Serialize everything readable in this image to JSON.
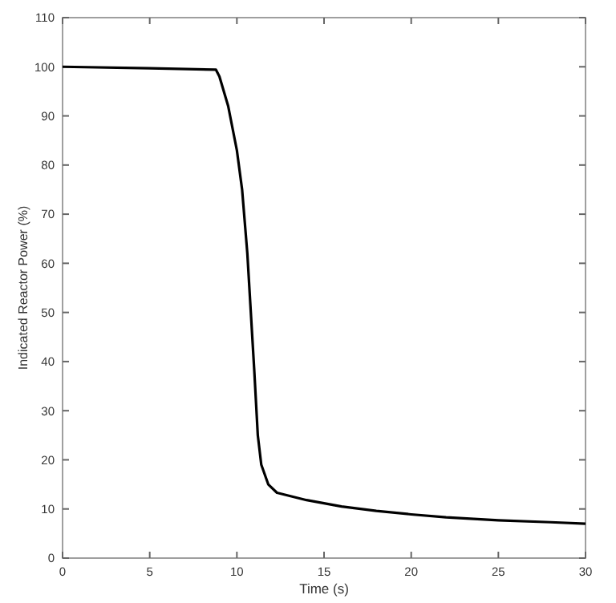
{
  "chart_data": {
    "type": "line",
    "xlabel": "Time (s)",
    "ylabel": "Indicated Reactor Power (%)",
    "x": [
      0,
      5,
      8.8,
      9.0,
      9.5,
      10,
      10.3,
      10.6,
      10.8,
      11.0,
      11.2,
      11.4,
      11.8,
      12.3,
      14,
      16,
      18,
      20,
      22,
      25,
      28,
      30
    ],
    "series": [
      {
        "color": "#000000",
        "values": [
          100,
          99.7,
          99.4,
          98,
          92,
          83,
          75,
          62,
          50,
          38,
          25,
          19,
          15,
          13.3,
          11.8,
          10.5,
          9.6,
          8.9,
          8.3,
          7.7,
          7.3,
          7.0
        ]
      }
    ],
    "xlim": [
      0,
      30
    ],
    "xticks": [
      0,
      5,
      10,
      15,
      20,
      25,
      30
    ],
    "ylim": [
      0,
      110
    ],
    "yticks": [
      0,
      10,
      20,
      30,
      40,
      50,
      60,
      70,
      80,
      90,
      100,
      110
    ],
    "marker": "none",
    "line_style": "solid"
  }
}
